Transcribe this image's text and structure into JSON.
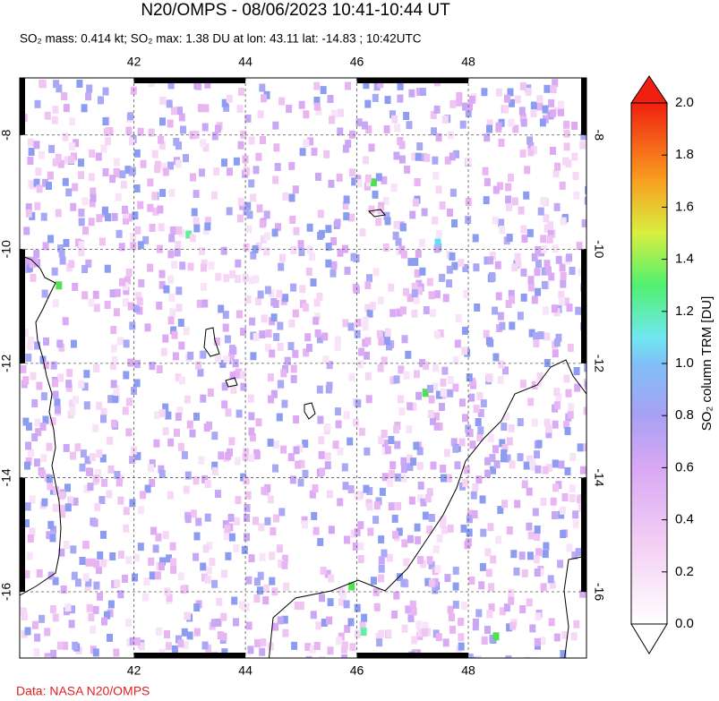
{
  "header": {
    "title": "N20/OMPS - 08/06/2023 10:41-10:44 UT",
    "subtitle": "SO₂ mass: 0.414 kt; SO₂ max: 1.38 DU at lon: 43.11 lat: -14.83 ; 10:42UTC"
  },
  "map": {
    "lon_range": [
      39.95,
      50.12
    ],
    "lat_range": [
      -17.16,
      -7.0
    ],
    "lon_ticks": [
      42,
      44,
      46,
      48
    ],
    "lat_ticks": [
      -8,
      -10,
      -12,
      -14,
      -16
    ]
  },
  "colorbar": {
    "label": "SO₂ column TRM [DU]",
    "range": [
      0,
      2
    ],
    "ticks": [
      {
        "value": 0,
        "label": "0.0"
      },
      0.2,
      0.4,
      0.6,
      0.8,
      {
        "value": 1,
        "label": "1.0"
      },
      1.2,
      1.4,
      1.6,
      1.8,
      {
        "value": 2,
        "label": "2.0"
      }
    ]
  },
  "footer": {
    "credit": "Data: NASA N20/OMPS"
  }
}
